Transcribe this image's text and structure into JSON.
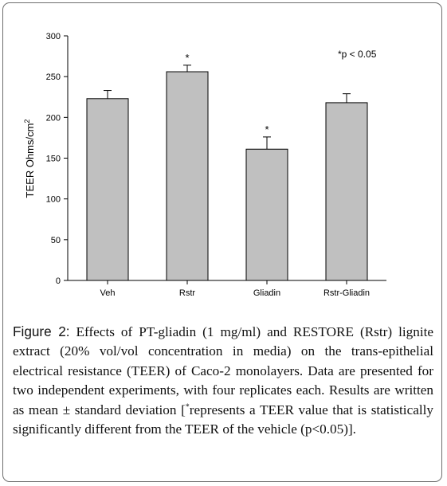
{
  "chart_data": {
    "type": "bar",
    "categories": [
      "Veh",
      "Rstr",
      "Gliadin",
      "Rstr-Gliadin"
    ],
    "values": [
      223,
      256,
      161,
      218
    ],
    "errors": [
      10,
      8,
      15,
      11
    ],
    "significance": [
      "",
      "*",
      "*",
      ""
    ],
    "ylabel": "TEER Ohms/cm",
    "ylabel_superscript": "2",
    "ylim": [
      0,
      300
    ],
    "yticks": [
      "0",
      "50",
      "100",
      "150",
      "200",
      "250",
      "300"
    ],
    "annotation": "*p < 0.05",
    "bar_color": "#c0c0c0"
  },
  "caption": {
    "label": "Figure 2:",
    "text_before_sup": " Effects of PT-gliadin (1 mg/ml) and RESTORE (Rstr) lignite extract (20% vol/vol concentration in media) on the trans-epithelial electrical resistance (TEER) of Caco-2 monolayers. Data are presented for two independent experiments, with four replicates each. Results are written as mean ± standard deviation [",
    "sup": "*",
    "text_after_sup": "represents a TEER value that is statistically significantly different from the TEER of the vehicle (p<0.05)]."
  }
}
